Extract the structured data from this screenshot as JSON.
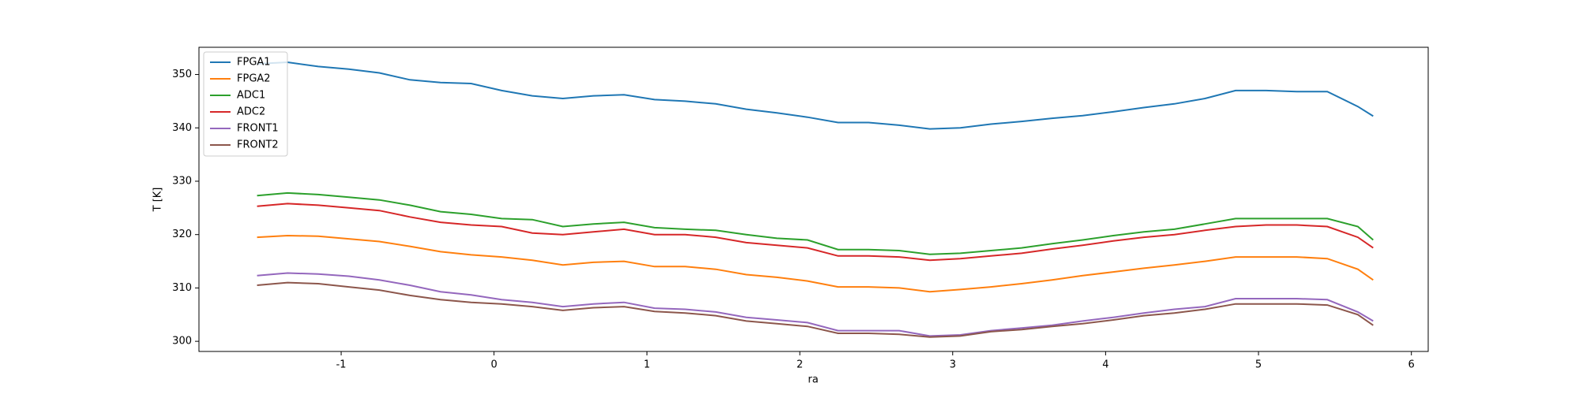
{
  "chart_data": {
    "type": "line",
    "xlabel": "ra",
    "ylabel": "T [K]",
    "x": [
      -1.55,
      -1.35,
      -1.15,
      -0.95,
      -0.75,
      -0.55,
      -0.35,
      -0.15,
      0.05,
      0.25,
      0.45,
      0.65,
      0.85,
      1.05,
      1.25,
      1.45,
      1.65,
      1.85,
      2.05,
      2.25,
      2.45,
      2.65,
      2.85,
      3.05,
      3.25,
      3.45,
      3.65,
      3.85,
      4.05,
      4.25,
      4.45,
      4.65,
      4.85,
      5.05,
      5.25,
      5.45,
      5.65,
      5.75
    ],
    "series": [
      {
        "name": "FPGA1",
        "color": "#1f77b4",
        "values": [
          352,
          352.3,
          351.5,
          351,
          350.3,
          349,
          348.5,
          348.3,
          347,
          346,
          345.5,
          346,
          346.2,
          345.3,
          345,
          344.5,
          343.5,
          342.8,
          342,
          341,
          341,
          340.5,
          339.8,
          340,
          340.7,
          341.2,
          341.8,
          342.3,
          343,
          343.8,
          344.5,
          345.5,
          347,
          347,
          346.8,
          346.8,
          344,
          342.2
        ]
      },
      {
        "name": "FPGA2",
        "color": "#ff7f0e",
        "values": [
          319.5,
          319.8,
          319.7,
          319.2,
          318.7,
          317.8,
          316.8,
          316.2,
          315.8,
          315.2,
          314.3,
          314.8,
          315,
          314,
          314,
          313.5,
          312.5,
          312,
          311.3,
          310.2,
          310.2,
          310,
          309.3,
          309.7,
          310.2,
          310.8,
          311.5,
          312.3,
          313,
          313.7,
          314.3,
          315,
          315.8,
          315.8,
          315.8,
          315.5,
          313.5,
          311.5
        ]
      },
      {
        "name": "ADC1",
        "color": "#2ca02c",
        "values": [
          327.3,
          327.8,
          327.5,
          327,
          326.5,
          325.5,
          324.3,
          323.8,
          323,
          322.8,
          321.5,
          322,
          322.3,
          321.3,
          321,
          320.8,
          320,
          319.3,
          319,
          317.2,
          317.2,
          317,
          316.3,
          316.5,
          317,
          317.5,
          318.3,
          319,
          319.8,
          320.5,
          321,
          322,
          323,
          323,
          323,
          323,
          321.5,
          319
        ]
      },
      {
        "name": "ADC2",
        "color": "#d62728",
        "values": [
          325.3,
          325.8,
          325.5,
          325,
          324.5,
          323.3,
          322.3,
          321.8,
          321.5,
          320.3,
          320,
          320.5,
          321,
          320,
          320,
          319.5,
          318.5,
          318,
          317.5,
          316,
          316,
          315.8,
          315.2,
          315.5,
          316,
          316.5,
          317.3,
          318,
          318.8,
          319.5,
          320,
          320.8,
          321.5,
          321.8,
          321.8,
          321.5,
          319.5,
          317.5
        ]
      },
      {
        "name": "FRONT1",
        "color": "#9467bd",
        "values": [
          312.3,
          312.8,
          312.6,
          312.2,
          311.5,
          310.5,
          309.3,
          308.7,
          307.8,
          307.3,
          306.5,
          307,
          307.3,
          306.2,
          306,
          305.5,
          304.5,
          304,
          303.5,
          302,
          302,
          302,
          301,
          301.2,
          302,
          302.5,
          303,
          303.8,
          304.5,
          305.3,
          306,
          306.5,
          308,
          308,
          308,
          307.8,
          305.5,
          303.8
        ]
      },
      {
        "name": "FRONT2",
        "color": "#8c564b",
        "values": [
          310.5,
          311,
          310.8,
          310.2,
          309.6,
          308.6,
          307.8,
          307.3,
          307,
          306.5,
          305.8,
          306.3,
          306.5,
          305.6,
          305.3,
          304.8,
          303.8,
          303.3,
          302.8,
          301.5,
          301.5,
          301.3,
          300.8,
          301,
          301.8,
          302.2,
          302.8,
          303.3,
          304,
          304.8,
          305.3,
          306,
          307,
          307,
          307,
          306.8,
          305,
          303
        ]
      }
    ],
    "xlim": [
      -1.93,
      6.11
    ],
    "xticks": [
      -1,
      0,
      1,
      2,
      3,
      4,
      5,
      6
    ],
    "ylim": [
      298.1,
      355.1
    ],
    "yticks": [
      300,
      310,
      320,
      330,
      340,
      350
    ],
    "legend": "upper left"
  }
}
